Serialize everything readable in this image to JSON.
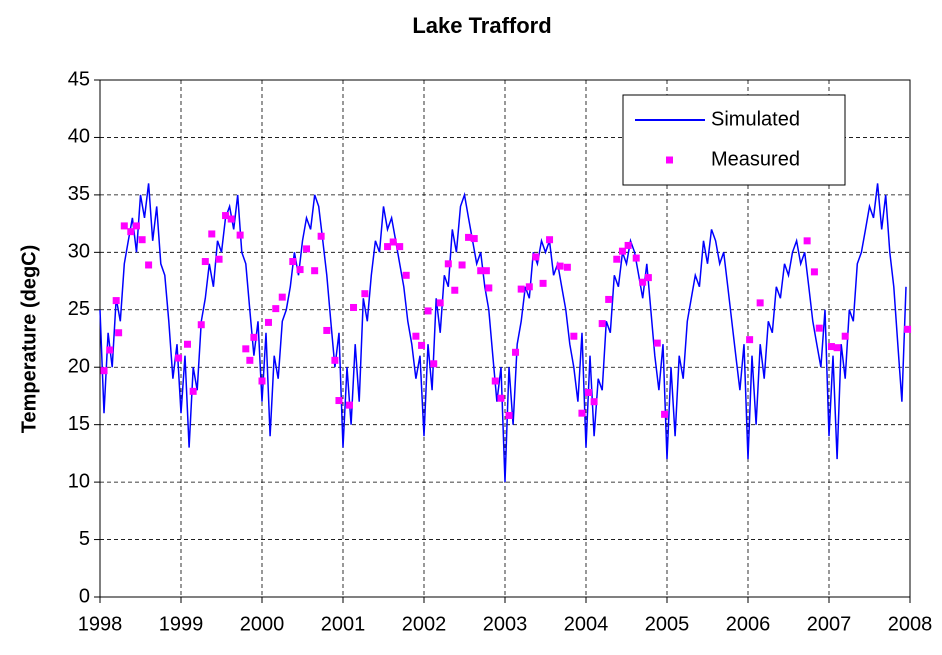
{
  "chart_data": {
    "type": "line",
    "title": "Lake Trafford",
    "y_label": "Temperature (degC)",
    "xlim": [
      1998,
      2008
    ],
    "xticks": [
      1998,
      1999,
      2000,
      2001,
      2002,
      2003,
      2004,
      2005,
      2006,
      2007,
      2008
    ],
    "ylim": [
      0,
      45
    ],
    "yticks": [
      0,
      5,
      10,
      15,
      20,
      25,
      30,
      35,
      40,
      45
    ],
    "grid": true,
    "legend": "upper right",
    "series": [
      {
        "name": "Simulated",
        "color": "#0000ff",
        "mode": "line",
        "x": [
          1998,
          1998.05,
          1998.1,
          1998.15,
          1998.2,
          1998.25,
          1998.3,
          1998.35,
          1998.4,
          1998.45,
          1998.5,
          1998.55,
          1998.6,
          1998.65,
          1998.7,
          1998.75,
          1998.8,
          1998.85,
          1998.9,
          1998.95,
          1999,
          1999.05,
          1999.1,
          1999.15,
          1999.2,
          1999.25,
          1999.3,
          1999.35,
          1999.4,
          1999.45,
          1999.5,
          1999.55,
          1999.6,
          1999.65,
          1999.7,
          1999.75,
          1999.8,
          1999.85,
          1999.9,
          1999.95,
          2000,
          2000.05,
          2000.1,
          2000.15,
          2000.2,
          2000.25,
          2000.3,
          2000.35,
          2000.4,
          2000.45,
          2000.5,
          2000.55,
          2000.6,
          2000.65,
          2000.7,
          2000.75,
          2000.8,
          2000.85,
          2000.9,
          2000.95,
          2001,
          2001.05,
          2001.1,
          2001.15,
          2001.2,
          2001.25,
          2001.3,
          2001.35,
          2001.4,
          2001.45,
          2001.5,
          2001.55,
          2001.6,
          2001.65,
          2001.7,
          2001.75,
          2001.8,
          2001.85,
          2001.9,
          2001.95,
          2002,
          2002.05,
          2002.1,
          2002.15,
          2002.2,
          2002.25,
          2002.3,
          2002.35,
          2002.4,
          2002.45,
          2002.5,
          2002.55,
          2002.6,
          2002.65,
          2002.7,
          2002.75,
          2002.8,
          2002.85,
          2002.9,
          2002.95,
          2003,
          2003.05,
          2003.1,
          2003.15,
          2003.2,
          2003.25,
          2003.3,
          2003.35,
          2003.4,
          2003.45,
          2003.5,
          2003.55,
          2003.6,
          2003.65,
          2003.7,
          2003.75,
          2003.8,
          2003.85,
          2003.9,
          2003.95,
          2004,
          2004.05,
          2004.1,
          2004.15,
          2004.2,
          2004.25,
          2004.3,
          2004.35,
          2004.4,
          2004.45,
          2004.5,
          2004.55,
          2004.6,
          2004.65,
          2004.7,
          2004.75,
          2004.8,
          2004.85,
          2004.9,
          2004.95,
          2005,
          2005.05,
          2005.1,
          2005.15,
          2005.2,
          2005.25,
          2005.3,
          2005.35,
          2005.4,
          2005.45,
          2005.5,
          2005.55,
          2005.6,
          2005.65,
          2005.7,
          2005.75,
          2005.8,
          2005.85,
          2005.9,
          2005.95,
          2006,
          2006.05,
          2006.1,
          2006.15,
          2006.2,
          2006.25,
          2006.3,
          2006.35,
          2006.4,
          2006.45,
          2006.5,
          2006.55,
          2006.6,
          2006.65,
          2006.7,
          2006.75,
          2006.8,
          2006.85,
          2006.9,
          2006.95,
          2007,
          2007.05,
          2007.1,
          2007.15,
          2007.2,
          2007.25,
          2007.3,
          2007.35,
          2007.4,
          2007.45,
          2007.5,
          2007.55,
          2007.6,
          2007.65,
          2007.7,
          2007.75,
          2007.8,
          2007.85,
          2007.9,
          2007.95
        ],
        "values": [
          25,
          16,
          23,
          20,
          26,
          24,
          29,
          31,
          33,
          30,
          35,
          33,
          36,
          31,
          34,
          29,
          28,
          24,
          19,
          22,
          16,
          21,
          13,
          20,
          18,
          24,
          26,
          29,
          27,
          31,
          30,
          33,
          34,
          32,
          35,
          30,
          29,
          25,
          21,
          24,
          17,
          23,
          14,
          21,
          19,
          24,
          25,
          27,
          30,
          28,
          31,
          33,
          32,
          35,
          34,
          31,
          28,
          24,
          20,
          23,
          13,
          20,
          15,
          22,
          17,
          26,
          24,
          28,
          31,
          30,
          34,
          32,
          33,
          31,
          29,
          27,
          24,
          22,
          19,
          21,
          14,
          22,
          18,
          26,
          23,
          28,
          27,
          32,
          30,
          34,
          35,
          33,
          31,
          29,
          30,
          27,
          25,
          21,
          17,
          20,
          10,
          20,
          15,
          22,
          24,
          27,
          26,
          30,
          29,
          31,
          30,
          31,
          28,
          29,
          27,
          25,
          22,
          20,
          17,
          23,
          13,
          21,
          14,
          19,
          18,
          24,
          23,
          28,
          27,
          30,
          29,
          31,
          30,
          28,
          26,
          29,
          25,
          21,
          18,
          22,
          12,
          20,
          14,
          21,
          19,
          24,
          26,
          28,
          27,
          31,
          29,
          32,
          31,
          29,
          30,
          27,
          24,
          21,
          18,
          22,
          12,
          21,
          15,
          22,
          19,
          24,
          23,
          27,
          26,
          29,
          28,
          30,
          31,
          29,
          30,
          27,
          24,
          22,
          20,
          25,
          14,
          21,
          12,
          22,
          19,
          25,
          24,
          29,
          30,
          32,
          34,
          33,
          36,
          32,
          35,
          30,
          27,
          22,
          17,
          27
        ]
      },
      {
        "name": "Measured",
        "color": "#ff00ff",
        "mode": "markers",
        "x": [
          1998.05,
          1998.12,
          1998.2,
          1998.23,
          1998.3,
          1998.38,
          1998.45,
          1998.52,
          1998.6,
          1998.97,
          1999.08,
          1999.15,
          1999.25,
          1999.3,
          1999.38,
          1999.47,
          1999.55,
          1999.62,
          1999.73,
          1999.8,
          1999.85,
          1999.9,
          2000,
          2000.08,
          2000.17,
          2000.25,
          2000.38,
          2000.47,
          2000.55,
          2000.65,
          2000.73,
          2000.8,
          2000.9,
          2000.95,
          2001.08,
          2001.13,
          2001.27,
          2001.55,
          2001.62,
          2001.7,
          2001.78,
          2001.9,
          2001.97,
          2002.05,
          2002.12,
          2002.2,
          2002.3,
          2002.38,
          2002.47,
          2002.55,
          2002.62,
          2002.7,
          2002.77,
          2002.8,
          2002.88,
          2002.95,
          2003.05,
          2003.13,
          2003.2,
          2003.3,
          2003.38,
          2003.47,
          2003.55,
          2003.68,
          2003.77,
          2003.85,
          2003.95,
          2004.03,
          2004.1,
          2004.2,
          2004.28,
          2004.38,
          2004.45,
          2004.52,
          2004.62,
          2004.7,
          2004.77,
          2004.88,
          2004.97,
          2006.02,
          2006.15,
          2006.73,
          2006.82,
          2006.88,
          2007.03,
          2007.1,
          2007.2,
          2007.97
        ],
        "values": [
          19.7,
          21.5,
          25.8,
          23,
          32.3,
          31.8,
          32.3,
          31.1,
          28.9,
          20.8,
          22,
          17.9,
          23.7,
          29.2,
          31.6,
          29.4,
          33.2,
          32.9,
          31.5,
          21.6,
          20.6,
          22.6,
          18.8,
          23.9,
          25.1,
          26.1,
          29.2,
          28.5,
          30.3,
          28.4,
          31.4,
          23.2,
          20.6,
          17.1,
          16.7,
          25.2,
          26.4,
          30.5,
          30.9,
          30.5,
          28,
          22.7,
          21.9,
          24.9,
          20.3,
          25.6,
          29,
          26.7,
          28.9,
          31.3,
          31.2,
          28.4,
          28.4,
          26.9,
          18.8,
          17.3,
          15.8,
          21.3,
          26.8,
          27,
          29.6,
          27.3,
          31.1,
          28.8,
          28.7,
          22.7,
          16,
          17.8,
          17,
          23.8,
          25.9,
          29.4,
          30.1,
          30.6,
          29.5,
          27.4,
          27.8,
          22.1,
          15.9,
          22.4,
          25.6,
          31,
          28.3,
          23.4,
          21.8,
          21.7,
          22.7,
          23.3
        ]
      }
    ]
  }
}
